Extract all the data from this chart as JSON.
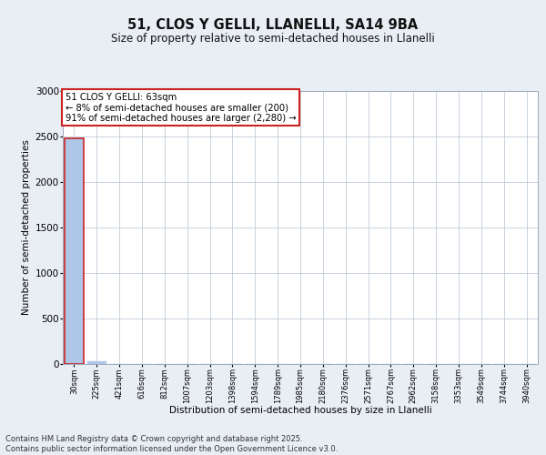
{
  "title1": "51, CLOS Y GELLI, LLANELLI, SA14 9BA",
  "title2": "Size of property relative to semi-detached houses in Llanelli",
  "xlabel": "Distribution of semi-detached houses by size in Llanelli",
  "ylabel": "Number of semi-detached properties",
  "bin_labels": [
    "30sqm",
    "225sqm",
    "421sqm",
    "616sqm",
    "812sqm",
    "1007sqm",
    "1203sqm",
    "1398sqm",
    "1594sqm",
    "1789sqm",
    "1985sqm",
    "2180sqm",
    "2376sqm",
    "2571sqm",
    "2767sqm",
    "2962sqm",
    "3158sqm",
    "3353sqm",
    "3549sqm",
    "3744sqm",
    "3940sqm"
  ],
  "bar_heights": [
    2480,
    30,
    0,
    0,
    0,
    0,
    0,
    0,
    0,
    0,
    0,
    0,
    0,
    0,
    0,
    0,
    0,
    0,
    0,
    0,
    0
  ],
  "bar_color": "#aec6e8",
  "highlight_bar_index": 0,
  "highlight_edge_color": "#cc2222",
  "ylim": [
    0,
    3000
  ],
  "yticks": [
    0,
    500,
    1000,
    1500,
    2000,
    2500,
    3000
  ],
  "annotation_text": "51 CLOS Y GELLI: 63sqm\n← 8% of semi-detached houses are smaller (200)\n91% of semi-detached houses are larger (2,280) →",
  "annotation_box_color": "#ffffff",
  "annotation_border_color": "#cc2222",
  "footer_text": "Contains HM Land Registry data © Crown copyright and database right 2025.\nContains public sector information licensed under the Open Government Licence v3.0.",
  "background_color": "#e8eef4",
  "plot_bg_color": "#ffffff",
  "grid_color": "#c0ccd8"
}
